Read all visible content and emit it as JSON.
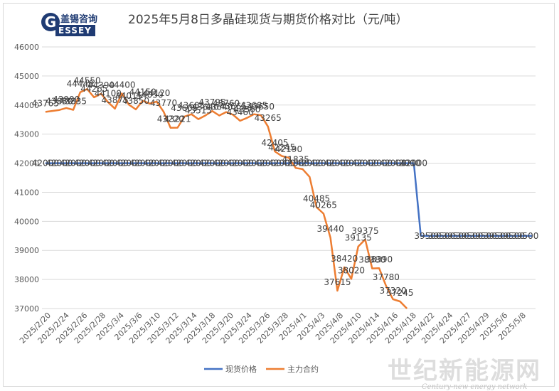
{
  "logo": {
    "cn": "盖锡咨询",
    "mark": "G",
    "en": "ESSEY"
  },
  "watermark": {
    "cn": "世纪新能源网",
    "en": "Century-new energy network"
  },
  "chart_data": {
    "type": "line",
    "title": "2025年5月8日多晶硅现货与期货价格对比（元/吨）",
    "xlabel": "",
    "ylabel": "",
    "ylim": [
      37000,
      46000
    ],
    "yticks": [
      37000,
      38000,
      39000,
      40000,
      41000,
      42000,
      43000,
      44000,
      45000,
      46000
    ],
    "ytick_labels": [
      "37000",
      "38000",
      "39000",
      "40000",
      "41000",
      "42000",
      "43000",
      "44000",
      "45000",
      "46000"
    ],
    "grid": true,
    "legend_position": "bottom",
    "x_tick_labels": [
      "2025/2/20",
      "2025/2/24",
      "2025/2/26",
      "2025/2/28",
      "2025/3/4",
      "2025/3/6",
      "2025/3/10",
      "2025/3/12",
      "2025/3/14",
      "2025/3/18",
      "2025/3/20",
      "2025/3/24",
      "2025/3/26",
      "2025/3/28",
      "2025/4/1",
      "2025/4/3",
      "2025/4/8",
      "2025/4/10",
      "2025/4/14",
      "2025/4/16",
      "2025/4/18",
      "2025/4/22",
      "2025/4/24",
      "2025/4/27",
      "2025/4/29",
      "2025/5/6",
      "2025/5/8"
    ],
    "series": [
      {
        "name": "现货价格",
        "color": "#4472c4",
        "points": [
          [
            0,
            42000
          ],
          [
            1,
            42000
          ],
          [
            2,
            42000
          ],
          [
            3,
            42000
          ],
          [
            4,
            42000
          ],
          [
            5,
            42000
          ],
          [
            6,
            42000
          ],
          [
            7,
            42000
          ],
          [
            8,
            42000
          ],
          [
            9,
            42000
          ],
          [
            10,
            42000
          ],
          [
            11,
            42000
          ],
          [
            12,
            42000
          ],
          [
            13,
            42000
          ],
          [
            14,
            42000
          ],
          [
            15,
            42000
          ],
          [
            16,
            42000
          ],
          [
            17,
            42000
          ],
          [
            18,
            42000
          ],
          [
            19,
            42000
          ],
          [
            20,
            42000
          ],
          [
            21,
            42000
          ],
          [
            22,
            42000
          ],
          [
            23,
            42000
          ],
          [
            24,
            42000
          ],
          [
            25,
            42000
          ],
          [
            26,
            42000
          ],
          [
            27,
            42000
          ],
          [
            28,
            42000
          ],
          [
            29,
            42000
          ],
          [
            30,
            42000
          ],
          [
            31,
            42000
          ],
          [
            32,
            42000
          ],
          [
            33,
            42000
          ],
          [
            34,
            42000
          ],
          [
            35,
            42000
          ],
          [
            36,
            42000
          ],
          [
            37,
            42000
          ],
          [
            38,
            42000
          ],
          [
            39,
            42000
          ],
          [
            40,
            42000
          ],
          [
            41,
            42000
          ],
          [
            42,
            42000
          ],
          [
            43,
            42000
          ],
          [
            44,
            42000
          ],
          [
            45,
            42000
          ],
          [
            46,
            42000
          ],
          [
            47,
            42000
          ],
          [
            48,
            42000
          ],
          [
            49,
            42000
          ],
          [
            50,
            42000
          ],
          [
            51,
            42000
          ],
          [
            52,
            42000
          ],
          [
            53,
            42000
          ],
          [
            54,
            39500
          ],
          [
            55,
            39500
          ],
          [
            56,
            39500
          ],
          [
            57,
            39500
          ],
          [
            58,
            39500
          ],
          [
            59,
            39500
          ],
          [
            60,
            39500
          ],
          [
            61,
            39500
          ],
          [
            62,
            39500
          ],
          [
            63,
            39500
          ],
          [
            64,
            39500
          ],
          [
            65,
            39500
          ],
          [
            66,
            39500
          ],
          [
            67,
            39500
          ],
          [
            68,
            39500
          ],
          [
            69,
            39500
          ],
          [
            70,
            39500
          ]
        ],
        "data_labels": [
          [
            0,
            "42000"
          ],
          [
            2,
            "42000"
          ],
          [
            4,
            "42000"
          ],
          [
            6,
            "42000"
          ],
          [
            8,
            "42000"
          ],
          [
            10,
            "42000"
          ],
          [
            12,
            "42000"
          ],
          [
            14,
            "42000"
          ],
          [
            16,
            "42000"
          ],
          [
            18,
            "42000"
          ],
          [
            20,
            "42000"
          ],
          [
            22,
            "42000"
          ],
          [
            24,
            "42000"
          ],
          [
            26,
            "42000"
          ],
          [
            28,
            "42000"
          ],
          [
            30,
            "42000"
          ],
          [
            32,
            "42000"
          ],
          [
            34,
            "42000"
          ],
          [
            36,
            "42000"
          ],
          [
            38,
            "42000"
          ],
          [
            40,
            "42000"
          ],
          [
            42,
            "42000"
          ],
          [
            44,
            "42000"
          ],
          [
            46,
            "42000"
          ],
          [
            48,
            "42000"
          ],
          [
            50,
            "42000"
          ],
          [
            52,
            "42000"
          ],
          [
            53,
            "42000"
          ],
          [
            55,
            "39500"
          ],
          [
            57,
            "39500"
          ],
          [
            59,
            "39500"
          ],
          [
            61,
            "39500"
          ],
          [
            63,
            "39500"
          ],
          [
            65,
            "39500"
          ],
          [
            67,
            "39500"
          ],
          [
            69,
            "39500"
          ]
        ]
      },
      {
        "name": "主力合约",
        "color": "#ed7d31",
        "points": [
          [
            0,
            43765
          ],
          [
            2,
            43830
          ],
          [
            3,
            43900
          ],
          [
            4,
            43835
          ],
          [
            5,
            44440
          ],
          [
            6,
            44550
          ],
          [
            7,
            44265
          ],
          [
            8,
            44390
          ],
          [
            9,
            44100
          ],
          [
            10,
            43875
          ],
          [
            11,
            44400
          ],
          [
            12,
            44015
          ],
          [
            13,
            43850
          ],
          [
            14,
            44150
          ],
          [
            15,
            44050
          ],
          [
            16,
            44120
          ],
          [
            17,
            43770
          ],
          [
            18,
            43220
          ],
          [
            19,
            43221
          ],
          [
            20,
            43605
          ],
          [
            21,
            43685
          ],
          [
            22,
            43515
          ],
          [
            23,
            43640
          ],
          [
            24,
            43795
          ],
          [
            25,
            43640
          ],
          [
            26,
            43760
          ],
          [
            27,
            43665
          ],
          [
            28,
            43460
          ],
          [
            29,
            43560
          ],
          [
            30,
            43685
          ],
          [
            31,
            43650
          ],
          [
            32,
            43265
          ],
          [
            33,
            42405
          ],
          [
            34,
            42245
          ],
          [
            35,
            42190
          ],
          [
            36,
            41835
          ],
          [
            37,
            41795
          ],
          [
            38,
            41530
          ],
          [
            39,
            40485
          ],
          [
            40,
            40265
          ],
          [
            41,
            39440
          ],
          [
            42,
            37615
          ],
          [
            43,
            38420
          ],
          [
            44,
            38020
          ],
          [
            45,
            39135
          ],
          [
            46,
            39375
          ],
          [
            47,
            38380
          ],
          [
            48,
            38390
          ],
          [
            49,
            37780
          ],
          [
            50,
            37320
          ],
          [
            51,
            37245
          ],
          [
            52,
            37000
          ]
        ],
        "data_labels": [
          [
            0,
            "43765"
          ],
          [
            2,
            "43830"
          ],
          [
            3,
            "43900"
          ],
          [
            4,
            "43835"
          ],
          [
            5,
            "44440"
          ],
          [
            6,
            "44550"
          ],
          [
            7,
            "44265"
          ],
          [
            8,
            "44390"
          ],
          [
            9,
            "44100"
          ],
          [
            10,
            "43875"
          ],
          [
            11,
            "44400"
          ],
          [
            12,
            "44015"
          ],
          [
            13,
            "43850"
          ],
          [
            14,
            "44150"
          ],
          [
            15,
            "44050"
          ],
          [
            16,
            "44120"
          ],
          [
            17,
            "43770"
          ],
          [
            18,
            "43220"
          ],
          [
            19,
            "43221"
          ],
          [
            20,
            "43605"
          ],
          [
            21,
            "43685"
          ],
          [
            22,
            "43515"
          ],
          [
            23,
            "43640"
          ],
          [
            24,
            "43795"
          ],
          [
            25,
            "43640"
          ],
          [
            26,
            "43760"
          ],
          [
            27,
            "43665"
          ],
          [
            28,
            "43460"
          ],
          [
            29,
            "43560"
          ],
          [
            30,
            "43685"
          ],
          [
            31,
            "43650"
          ],
          [
            32,
            "43265"
          ],
          [
            33,
            "42405"
          ],
          [
            34,
            "42245"
          ],
          [
            35,
            "42190"
          ],
          [
            36,
            "41835"
          ],
          [
            39,
            "40485"
          ],
          [
            40,
            "40265"
          ],
          [
            41,
            "39440"
          ],
          [
            42,
            "37615"
          ],
          [
            43,
            "38420"
          ],
          [
            44,
            "38020"
          ],
          [
            45,
            "39135"
          ],
          [
            46,
            "39375"
          ],
          [
            47,
            "38380"
          ],
          [
            48,
            "38390"
          ],
          [
            49,
            "37780"
          ],
          [
            50,
            "37320"
          ],
          [
            51,
            "37245"
          ]
        ]
      }
    ]
  }
}
